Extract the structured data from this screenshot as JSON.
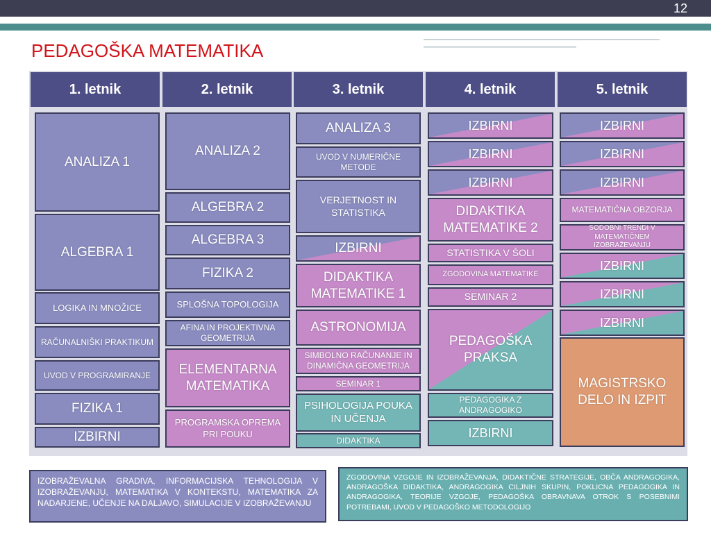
{
  "page_number": "12",
  "title": "PEDAGOŠKA MATEMATIKA",
  "columns": [
    {
      "header": "1. letnik",
      "courses": [
        "ANALIZA 1",
        "ALGEBRA 1",
        "LOGIKA IN MNOŽICE",
        "RAČUNALNIŠKI PRAKTIKUM",
        "UVOD V PROGRAMIRANJE",
        "FIZIKA 1",
        "IZBIRNI"
      ]
    },
    {
      "header": "2. letnik",
      "courses": [
        "ANALIZA 2",
        "ALGEBRA 2",
        "ALGEBRA 3",
        "FIZIKA 2",
        "SPLOŠNA TOPOLOGIJA",
        "AFINA IN PROJEKTIVNA GEOMETRIJA",
        "ELEMENTARNA MATEMATIKA",
        "PROGRAMSKA OPREMA PRI POUKU"
      ]
    },
    {
      "header": "3. letnik",
      "courses": [
        "ANALIZA 3",
        "UVOD V NUMERIČNE METODE",
        "VERJETNOST IN STATISTIKA",
        "IZBIRNI",
        "DIDAKTIKA MATEMATIKE 1",
        "ASTRONOMIJA",
        "SIMBOLNO RAČUNANJE IN DINAMIČNA GEOMETRIJA",
        "SEMINAR 1",
        "PSIHOLOGIJA POUKA IN UČENJA",
        "DIDAKTIKA"
      ]
    },
    {
      "header": "4. letnik",
      "courses": [
        "IZBIRNI",
        "IZBIRNI",
        "IZBIRNI",
        "DIDAKTIKA MATEMATIKE 2",
        "STATISTIKA V ŠOLI",
        "ZGODOVINA MATEMATIKE",
        "SEMINAR 2",
        "PEDAGOŠKA PRAKSA",
        "PEDAGOGIKA Z ANDRAGOGIKO",
        "IZBIRNI"
      ]
    },
    {
      "header": "5. letnik",
      "courses": [
        "IZBIRNI",
        "IZBIRNI",
        "IZBIRNI",
        "MATEMATIČNA OBZORJA",
        "SODOBNI TRENDI V MATEMATIČNEM IZOBRAŽEVANJU",
        "IZBIRNI",
        "IZBIRNI",
        "IZBIRNI",
        "MAGISTRSKO DELO IN IZPIT"
      ]
    }
  ],
  "notes": [
    "IZOBRAŽEVALNA GRADIVA, INFORMACIJSKA TEHNOLOGIJA V IZOBRAŽEVANJU, MATEMATIKA V KONTEKSTU, MATEMATIKA ZA NADARJENE, UČENJE NA DALJAVO, SIMULACIJE V IZOBRAŽEVANJU",
    "ZGODOVINA VZGOJE IN IZOBRAŽEVANJA, DIDAKTIČNE STRATEGIJE, OBČA ANDRAGOGIKA, ANDRAGOŠKA DIDAKTIKA, ANDRAGOGIKA CILJNIH SKUPIN, POKLICNA PEDAGOGIKA IN ANDRAGOGIKA, TEORIJE VZGOJE, PEDAGOŠKA OBRAVNAVA OTROK S POSEBNIMI POTREBAMI, UVOD V PEDAGOŠKO METODOLOGIJO"
  ]
}
